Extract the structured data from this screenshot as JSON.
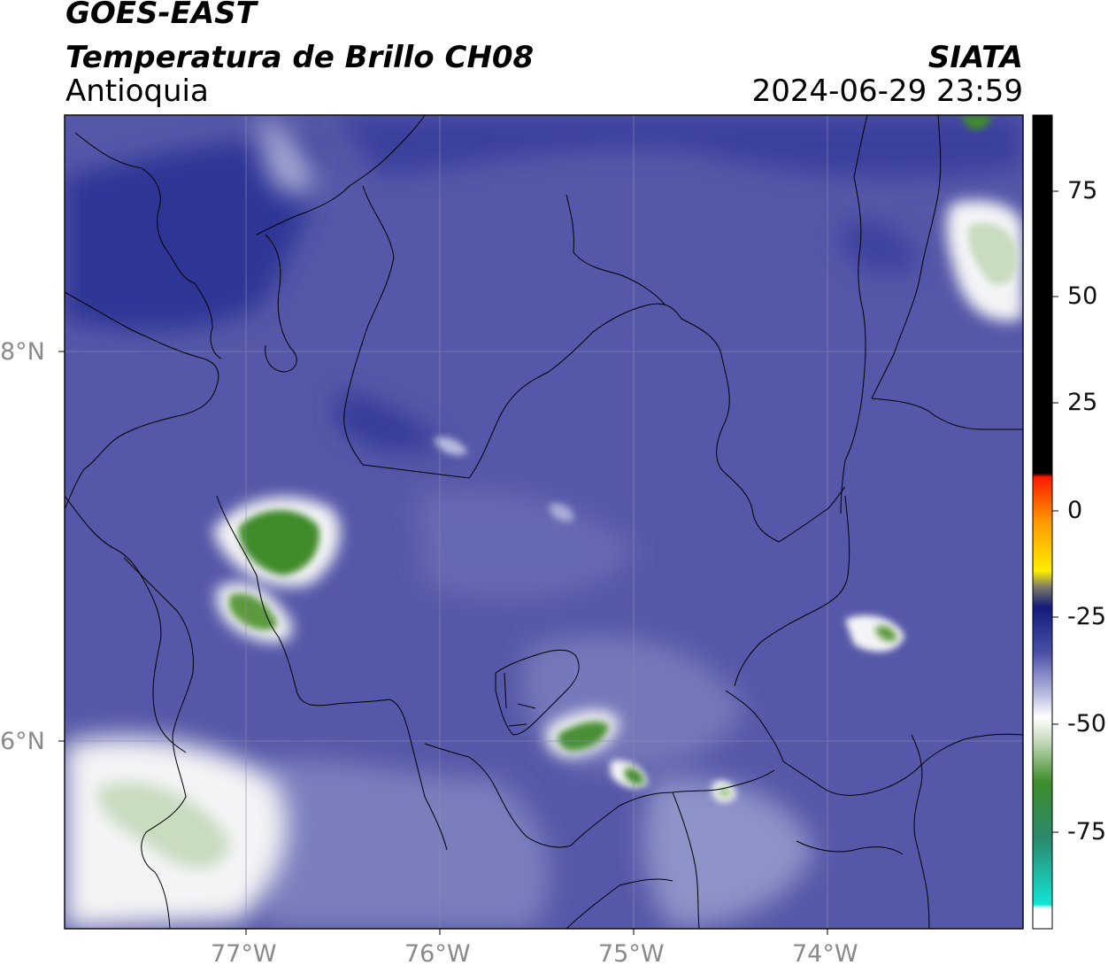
{
  "header": {
    "satellite": "GOES-EAST",
    "product": "Temperatura de Brillo CH08",
    "region": "Antioquia",
    "organization": "SIATA",
    "datetime": "2024-06-29 23:59"
  },
  "axes": {
    "lat_labels": [
      "8°N",
      "6°N"
    ],
    "lon_labels": [
      "77°W",
      "76°W",
      "75°W",
      "74°W"
    ]
  },
  "colorbar": {
    "ticks": [
      "75",
      "50",
      "25",
      "0",
      "-25",
      "-50",
      "-75"
    ],
    "colors": {
      "warm_black": "#000000",
      "red": "#ff1a00",
      "orange": "#ff9900",
      "yellow": "#ffee00",
      "navy": "#141a7a",
      "blue": "#5b5fae",
      "white": "#f7f7f7",
      "green": "#3e8c2a",
      "cyan": "#11e5d5"
    }
  },
  "map_colors": {
    "background": "#5558a8",
    "dark_blue": "#2f3595",
    "light_blue": "#8d92c7",
    "white_cloud": "#f4f4f6",
    "pale_green": "#c8dcc0",
    "green_core": "#3f8b2c",
    "border_line": "#000000"
  }
}
